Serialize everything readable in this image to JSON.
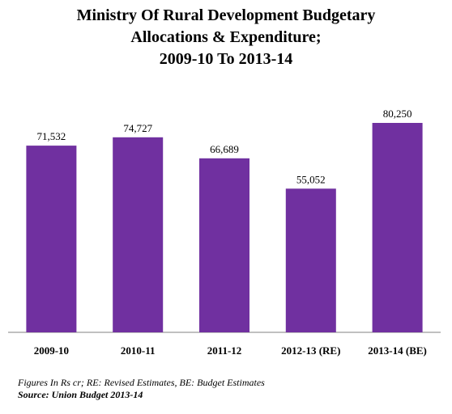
{
  "chart_data": {
    "type": "bar",
    "title_lines": [
      "Ministry Of Rural Development Budgetary",
      "Allocations & Expenditure;",
      "2009-10 To 2013-14"
    ],
    "categories": [
      "2009-10",
      "2010-11",
      "2011-12",
      "2012-13 (RE)",
      "2013-14 (BE)"
    ],
    "values": [
      71532,
      74727,
      66689,
      55052,
      80250
    ],
    "data_labels": [
      "71,532",
      "74,727",
      "66,689",
      "55,052",
      "80,250"
    ],
    "bar_color": "#7030a0",
    "ylim": [
      0,
      90000
    ],
    "grid": false,
    "legend": "none",
    "xlabel": "",
    "ylabel": ""
  },
  "footer": {
    "note": "Figures In Rs cr; RE: Revised Estimates, BE: Budget Estimates",
    "source": "Source: Union Budget 2013-14"
  }
}
